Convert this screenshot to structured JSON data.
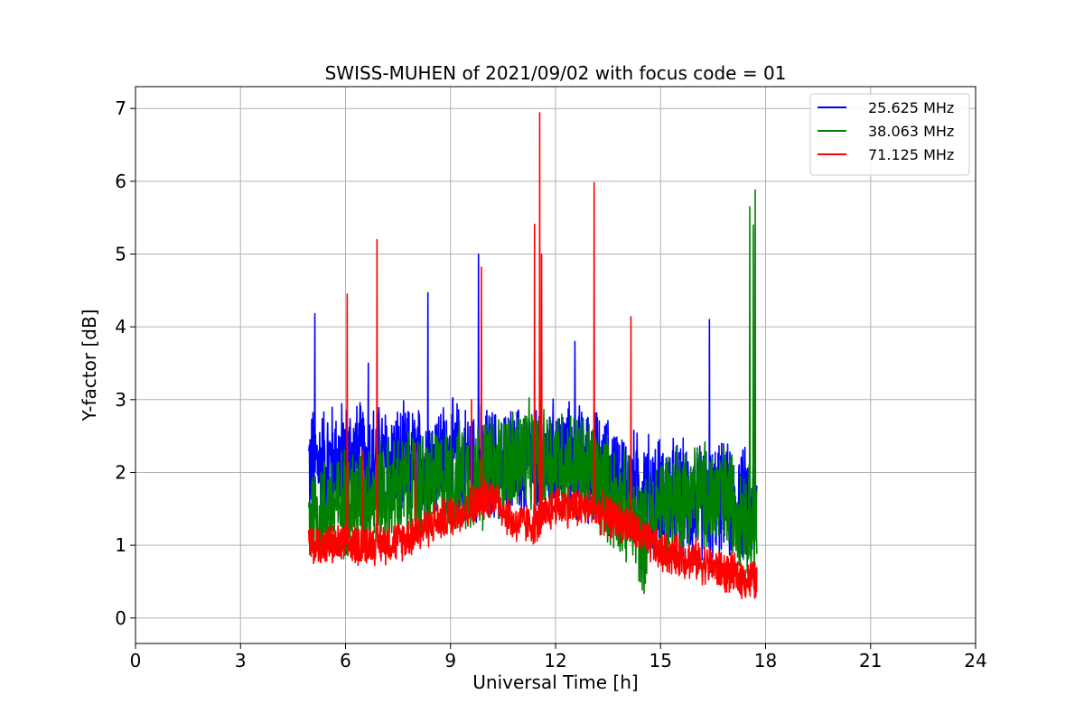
{
  "chart_data": {
    "type": "line",
    "title": "SWISS-MUHEN of 2021/09/02 with focus code = 01",
    "xlabel": "Universal Time [h]",
    "ylabel": "Y-factor [dB]",
    "xlim": [
      0,
      24
    ],
    "ylim": [
      -0.35,
      7.3
    ],
    "xticks": [
      0,
      3,
      6,
      9,
      12,
      15,
      18,
      21,
      24
    ],
    "yticks": [
      0,
      1,
      2,
      3,
      4,
      5,
      6,
      7
    ],
    "grid": true,
    "legend_position": "top-right",
    "series": [
      {
        "name": "25.625 MHz",
        "color": "#0000ff",
        "x_range": [
          4.95,
          17.75
        ],
        "baseline": [
          [
            4.95,
            2.1
          ],
          [
            6.0,
            2.2
          ],
          [
            8.0,
            2.1
          ],
          [
            9.0,
            2.2
          ],
          [
            10.0,
            2.1
          ],
          [
            11.0,
            2.1
          ],
          [
            12.0,
            2.2
          ],
          [
            13.0,
            2.1
          ],
          [
            14.0,
            1.8
          ],
          [
            15.0,
            1.7
          ],
          [
            16.0,
            1.6
          ],
          [
            17.0,
            1.6
          ],
          [
            17.75,
            1.5
          ]
        ],
        "noise_amplitude": 0.9,
        "spikes": [
          [
            5.12,
            4.18
          ],
          [
            8.35,
            4.47
          ],
          [
            9.8,
            5.0
          ],
          [
            12.55,
            3.8
          ],
          [
            16.4,
            4.1
          ],
          [
            6.65,
            3.5
          ]
        ]
      },
      {
        "name": "38.063 MHz",
        "color": "#008000",
        "x_range": [
          4.95,
          17.75
        ],
        "baseline": [
          [
            4.95,
            1.4
          ],
          [
            6.0,
            1.6
          ],
          [
            8.0,
            1.8
          ],
          [
            9.0,
            1.9
          ],
          [
            10.0,
            2.0
          ],
          [
            11.0,
            2.2
          ],
          [
            12.0,
            2.2
          ],
          [
            13.0,
            2.0
          ],
          [
            14.0,
            1.5
          ],
          [
            14.5,
            1.1
          ],
          [
            15.0,
            1.6
          ],
          [
            16.0,
            1.7
          ],
          [
            17.0,
            1.6
          ],
          [
            17.75,
            1.3
          ]
        ],
        "noise_amplitude": 0.85,
        "spikes": [
          [
            17.55,
            5.65
          ],
          [
            17.7,
            5.88
          ],
          [
            17.65,
            5.4
          ]
        ]
      },
      {
        "name": "71.125 MHz",
        "color": "#ff0000",
        "x_range": [
          4.95,
          17.75
        ],
        "baseline": [
          [
            4.95,
            1.0
          ],
          [
            6.0,
            1.0
          ],
          [
            7.5,
            1.05
          ],
          [
            8.5,
            1.3
          ],
          [
            9.5,
            1.5
          ],
          [
            10.2,
            1.7
          ],
          [
            10.8,
            1.3
          ],
          [
            11.5,
            1.3
          ],
          [
            12.0,
            1.55
          ],
          [
            13.0,
            1.5
          ],
          [
            14.0,
            1.3
          ],
          [
            15.0,
            0.9
          ],
          [
            16.0,
            0.8
          ],
          [
            17.0,
            0.6
          ],
          [
            17.75,
            0.5
          ]
        ],
        "noise_amplitude": 0.32,
        "spikes": [
          [
            6.05,
            4.45
          ],
          [
            6.9,
            5.2
          ],
          [
            9.6,
            3.0
          ],
          [
            9.88,
            4.82
          ],
          [
            11.4,
            5.41
          ],
          [
            11.55,
            6.94
          ],
          [
            11.6,
            5.0
          ],
          [
            13.1,
            5.98
          ],
          [
            14.15,
            4.14
          ],
          [
            6.5,
            2.3
          ],
          [
            8.0,
            2.4
          ]
        ]
      }
    ]
  }
}
